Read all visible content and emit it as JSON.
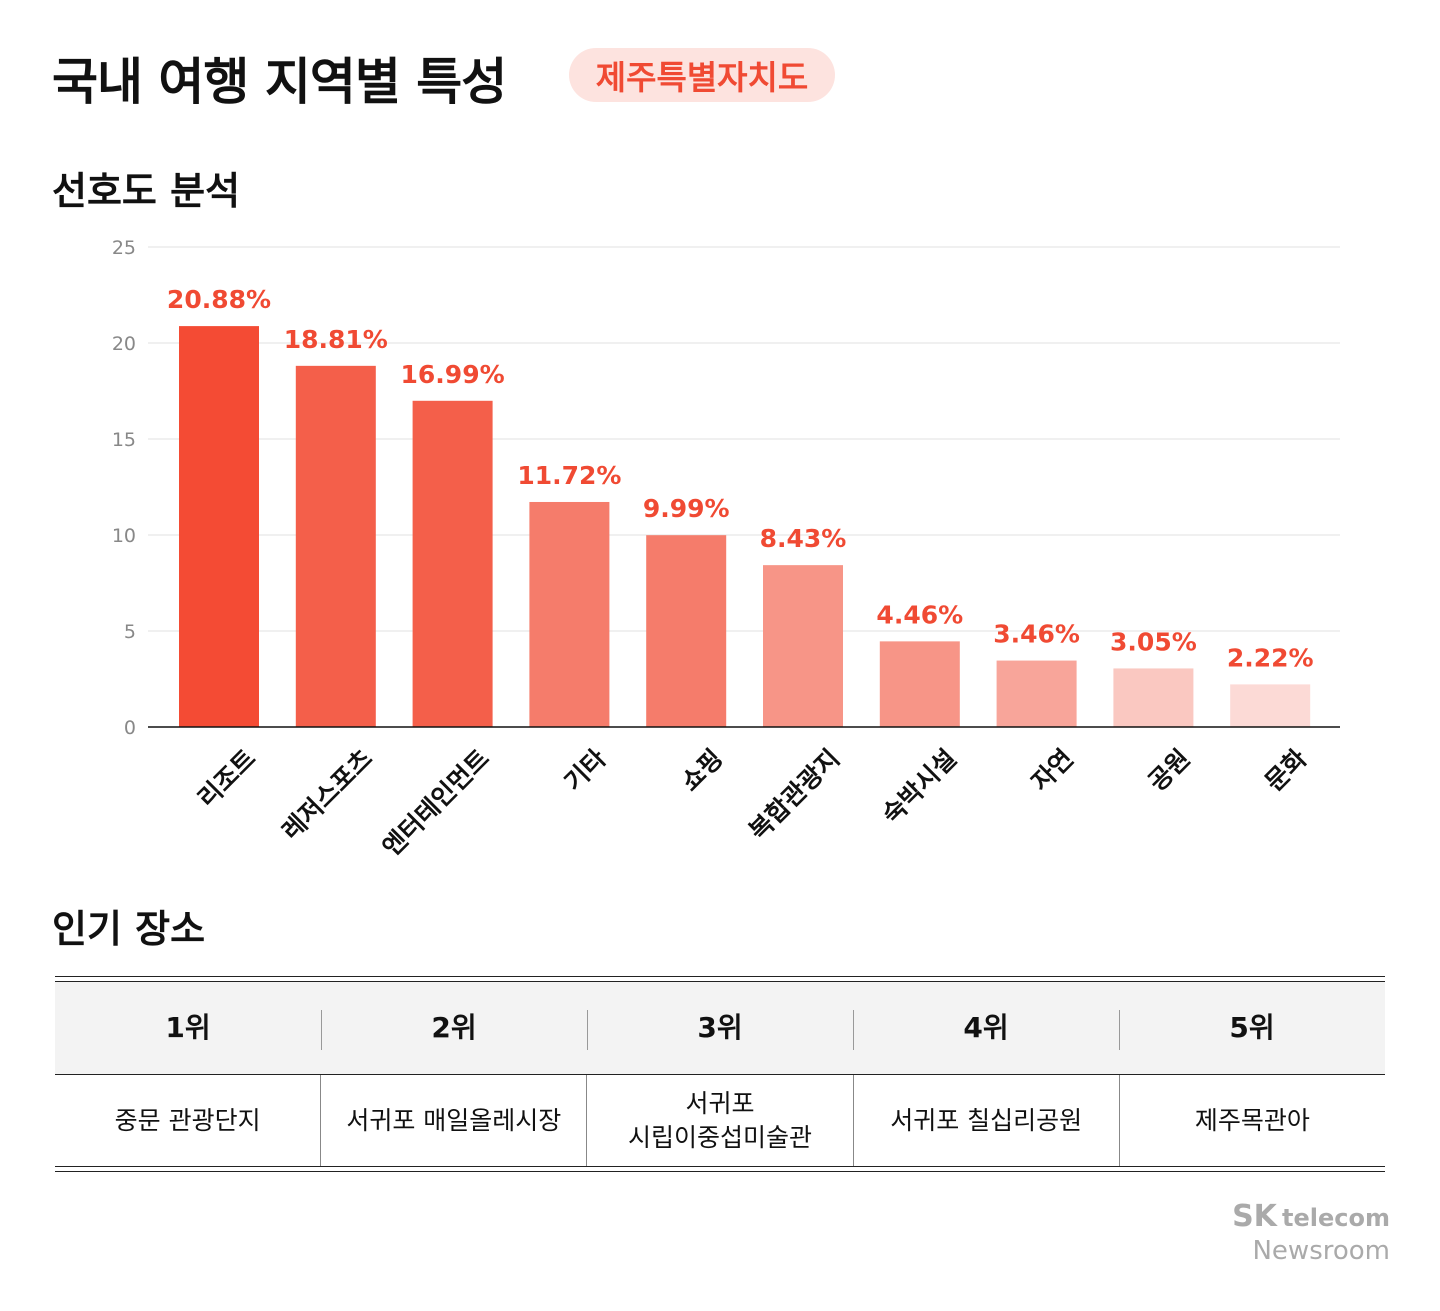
{
  "header": {
    "title": "국내 여행 지역별 특성",
    "region_badge": "제주특별자치도"
  },
  "sections": {
    "preference": "선호도 분석",
    "popular": "인기 장소"
  },
  "chart_data": {
    "type": "bar",
    "title": "",
    "xlabel": "",
    "ylabel": "",
    "ylim": [
      0,
      25
    ],
    "yticks": [
      0,
      5,
      10,
      15,
      20,
      25
    ],
    "grid": true,
    "categories": [
      "리조트",
      "레저스포츠",
      "엔터테인먼트",
      "기타",
      "쇼핑",
      "복합관광지",
      "숙박시설",
      "자연",
      "공원",
      "문화"
    ],
    "values": [
      20.88,
      18.81,
      16.99,
      11.72,
      9.99,
      8.43,
      4.46,
      3.46,
      3.05,
      2.22
    ],
    "data_labels": [
      "20.88%",
      "18.81%",
      "16.99%",
      "11.72%",
      "9.99%",
      "8.43%",
      "4.46%",
      "3.46%",
      "3.05%",
      "2.22%"
    ],
    "bar_colors": [
      "#f44b34",
      "#f45f4a",
      "#f45f4a",
      "#f57c6b",
      "#f57c6b",
      "#f79587",
      "#f79587",
      "#f8a59a",
      "#fac8c1",
      "#fcdad6"
    ],
    "label_color": "#f04a33"
  },
  "table": {
    "headers": [
      "1위",
      "2위",
      "3위",
      "4위",
      "5위"
    ],
    "places": [
      "중문 관광단지",
      "서귀포 매일올레시장",
      "서귀포\n시립이중섭미술관",
      "서귀포 칠십리공원",
      "제주목관아"
    ]
  },
  "logo": {
    "brand": "SK",
    "sub": "telecom",
    "product": "Newsroom"
  }
}
